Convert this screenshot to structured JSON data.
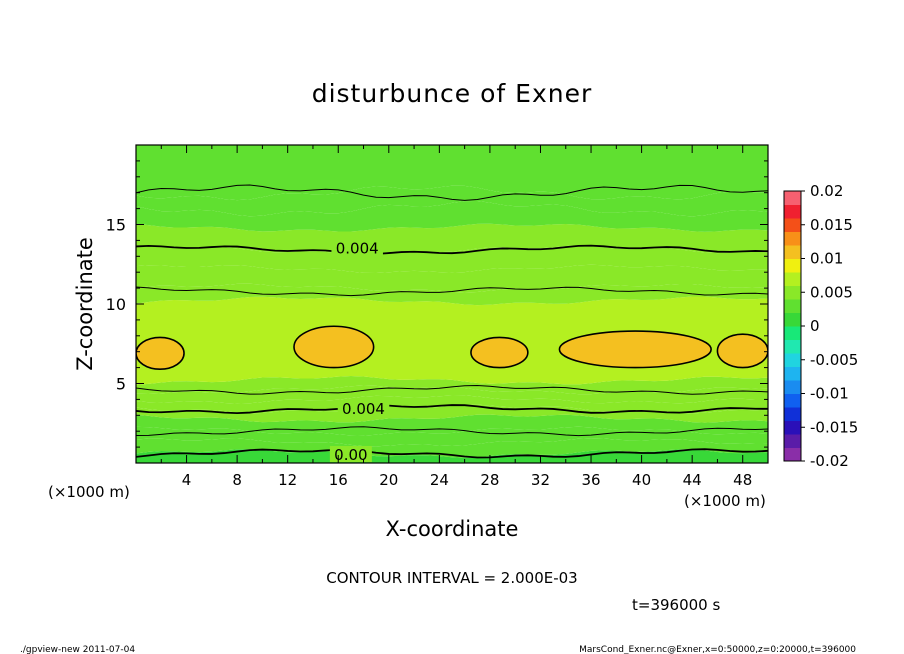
{
  "chart_data": {
    "type": "heatmap",
    "title": "disturbunce of Exner",
    "xlabel": "X-coordinate",
    "ylabel": "Z-coordinate",
    "x_unit_left": "(×1000 m)",
    "x_unit_right": "(×1000 m)",
    "xlim": [
      0,
      50
    ],
    "ylim": [
      0,
      20
    ],
    "x_ticks": [
      4,
      8,
      12,
      16,
      20,
      24,
      28,
      32,
      36,
      40,
      44,
      48
    ],
    "y_ticks": [
      5,
      10,
      15
    ],
    "contour_interval_text": "CONTOUR INTERVAL = 2.000E-03",
    "time_text": "t=396000 s",
    "contour_labels": [
      {
        "text": "0.004",
        "x": 17.5,
        "z": 13.5
      },
      {
        "text": "0.004",
        "x": 18,
        "z": 3.4
      },
      {
        "text": "0.00",
        "x": 17,
        "z": 0.5
      }
    ],
    "colorbar": {
      "ticks": [
        "0.02",
        "0.015",
        "0.01",
        "0.005",
        "0",
        "-0.005",
        "-0.01",
        "-0.015",
        "-0.02"
      ],
      "levels": [
        -0.02,
        -0.018,
        -0.016,
        -0.014,
        -0.012,
        -0.01,
        -0.008,
        -0.006,
        -0.004,
        -0.002,
        0,
        0.002,
        0.004,
        0.006,
        0.008,
        0.01,
        0.012,
        0.014,
        0.016,
        0.018,
        0.02
      ],
      "colors": [
        "#8a2ea8",
        "#5a1ca8",
        "#2a10b8",
        "#1030d8",
        "#1060f0",
        "#1a8cf0",
        "#1eb4f0",
        "#20d4e0",
        "#20e8b0",
        "#18e878",
        "#38d838",
        "#60e030",
        "#8ae828",
        "#b4f020",
        "#f0f010",
        "#f4c020",
        "#f89018",
        "#f45018",
        "#f02030",
        "#f66070"
      ]
    },
    "field": {
      "description_levels": "banded disturbance, max near z=7 km",
      "bands": [
        {
          "z": [
            0,
            0.6
          ],
          "value": 0.001
        },
        {
          "z": [
            0.6,
            1.3
          ],
          "value": 0.002
        },
        {
          "z": [
            1.3,
            2.0
          ],
          "value": 0.003
        },
        {
          "z": [
            2.0,
            2.8
          ],
          "value": 0.0035
        },
        {
          "z": [
            2.8,
            3.4
          ],
          "value": 0.004
        },
        {
          "z": [
            3.4,
            4.0
          ],
          "value": 0.0045
        },
        {
          "z": [
            4.0,
            4.6
          ],
          "value": 0.005
        },
        {
          "z": [
            4.6,
            5.2
          ],
          "value": 0.0055
        },
        {
          "z": [
            5.2,
            10.2
          ],
          "value": 0.0065
        },
        {
          "z": [
            10.2,
            11.0
          ],
          "value": 0.0055
        },
        {
          "z": [
            11.0,
            12.2
          ],
          "value": 0.005
        },
        {
          "z": [
            12.2,
            13.4
          ],
          "value": 0.0045
        },
        {
          "z": [
            13.4,
            14.8
          ],
          "value": 0.004
        },
        {
          "z": [
            14.8,
            16.0
          ],
          "value": 0.0035
        },
        {
          "z": [
            16.0,
            17.0
          ],
          "value": 0.003
        },
        {
          "z": [
            17.0,
            20.0
          ],
          "value": 0.0025
        }
      ],
      "maxima_blobs": [
        {
          "x": [
            0,
            3.8
          ],
          "z": [
            5.9,
            7.9
          ]
        },
        {
          "x": [
            12.5,
            18.8
          ],
          "z": [
            6.0,
            8.6
          ]
        },
        {
          "x": [
            26.5,
            31.0
          ],
          "z": [
            6.0,
            7.9
          ]
        },
        {
          "x": [
            33.5,
            45.5
          ],
          "z": [
            6.0,
            8.3
          ]
        },
        {
          "x": [
            46.0,
            50.0
          ],
          "z": [
            6.0,
            8.1
          ]
        }
      ]
    }
  },
  "footer": {
    "left": "./gpview-new   2011-07-04",
    "right": "MarsCond_Exner.nc@Exner,x=0:50000,z=0:20000,t=396000"
  }
}
